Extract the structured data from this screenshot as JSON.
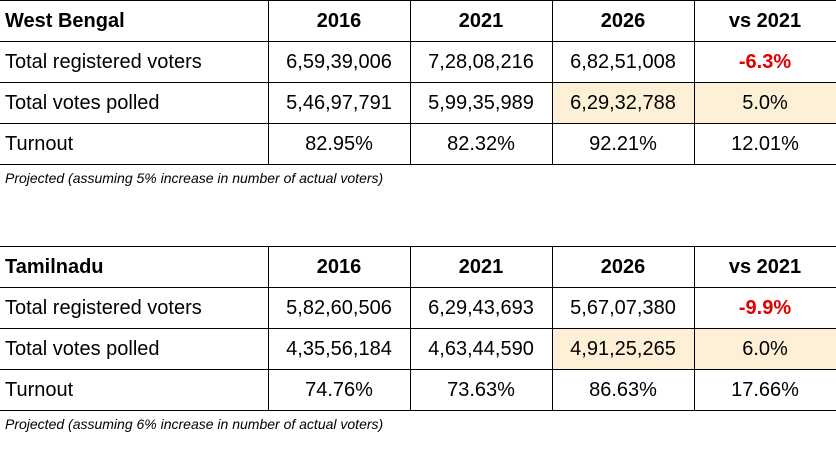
{
  "tables": [
    {
      "state": "West Bengal",
      "headers": [
        "2016",
        "2021",
        "2026",
        "vs 2021"
      ],
      "rows": [
        {
          "label": "Total registered voters",
          "v2016": "6,59,39,006",
          "v2021": "7,28,08,216",
          "v2026": "6,82,51,008",
          "vs2021": "-6.3%"
        },
        {
          "label": "Total votes polled",
          "v2016": "5,46,97,791",
          "v2021": "5,99,35,989",
          "v2026": "6,29,32,788",
          "vs2021": "5.0%"
        },
        {
          "label": "Turnout",
          "v2016": "82.95%",
          "v2021": "82.32%",
          "v2026": "92.21%",
          "vs2021": "12.01%"
        }
      ],
      "note": "Projected (assuming 5% increase in number of actual voters)"
    },
    {
      "state": "Tamilnadu",
      "headers": [
        "2016",
        "2021",
        "2026",
        "vs 2021"
      ],
      "rows": [
        {
          "label": "Total registered voters",
          "v2016": "5,82,60,506",
          "v2021": "6,29,43,693",
          "v2026": "5,67,07,380",
          "vs2021": "-9.9%"
        },
        {
          "label": "Total votes polled",
          "v2016": "4,35,56,184",
          "v2021": "4,63,44,590",
          "v2026": "4,91,25,265",
          "vs2021": "6.0%"
        },
        {
          "label": "Turnout",
          "v2016": "74.76%",
          "v2021": "73.63%",
          "v2026": "86.63%",
          "vs2021": "17.66%"
        }
      ],
      "note": "Projected (assuming 6% increase in number of actual voters)"
    }
  ],
  "colors": {
    "negative": "#e00000",
    "highlight": "#fdf0d6",
    "border": "#000000"
  }
}
